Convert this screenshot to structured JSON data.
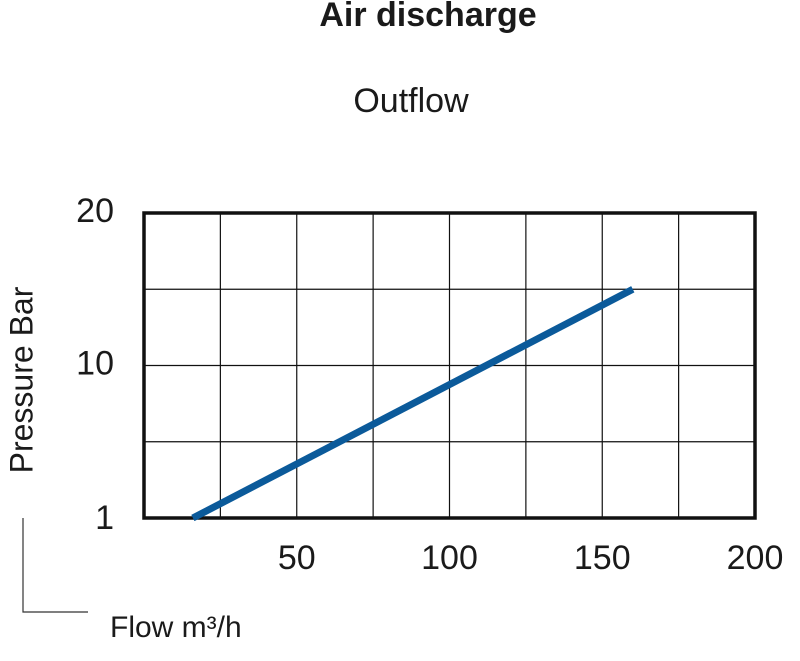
{
  "chart_data": {
    "type": "line",
    "title": "Air discharge",
    "subtitle": "Outflow",
    "x_label": "Flow m³/h",
    "y_label": "Pressure Bar",
    "x": [
      16,
      160
    ],
    "series": [
      {
        "values": [
          1,
          15
        ],
        "color": "#0b5a9a"
      }
    ],
    "xlim": [
      0,
      200
    ],
    "xticks": [
      50,
      100,
      150,
      200
    ],
    "x_minor_ticks": [
      25,
      75,
      125,
      175
    ],
    "ylim": [
      1,
      20
    ],
    "yticks": [
      1,
      10,
      20
    ],
    "y_minor_ticks": [
      5.5,
      15
    ],
    "yscale": "piecewise",
    "grid": true
  }
}
